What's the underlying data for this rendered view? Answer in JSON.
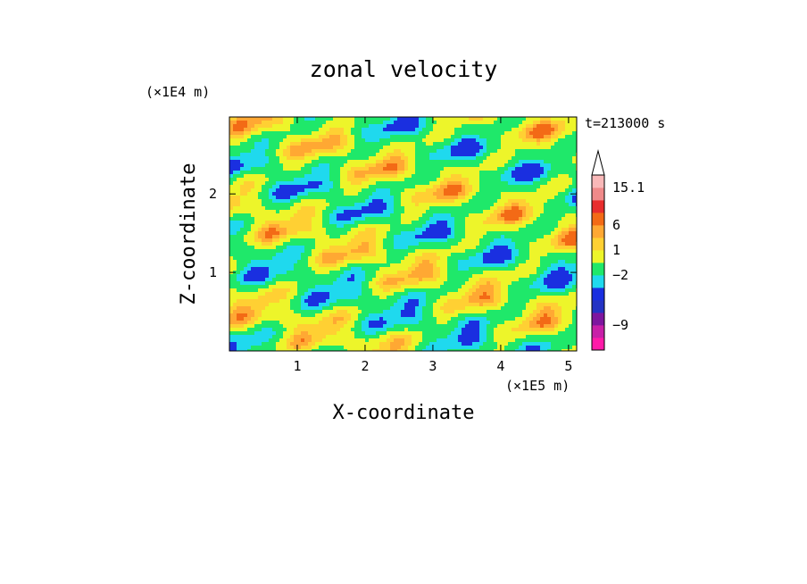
{
  "chart_data": {
    "type": "heatmap",
    "title": "zonal velocity",
    "time_label": "t=213000 s",
    "xlabel": "X-coordinate",
    "ylabel": "Z-coordinate",
    "x_unit": "(×1E5 m)",
    "y_unit": "(×1E4 m)",
    "xlim": [
      0,
      5.12
    ],
    "ylim": [
      0,
      2.98
    ],
    "x_ticks": [
      1,
      2,
      3,
      4,
      5
    ],
    "y_ticks": [
      1,
      2
    ],
    "colorbar": {
      "colors": [
        "#ff1aa8",
        "#c81fa8",
        "#7d169f",
        "#2433c4",
        "#1a2fe0",
        "#1fd9ee",
        "#1fe86a",
        "#edf52a",
        "#ffd033",
        "#ffa833",
        "#f36a16",
        "#e82d2d",
        "#f08a8a",
        "#f9b8b8"
      ],
      "extend_max": true,
      "labels": [
        "15.1",
        "6",
        "1",
        "−2",
        "−9"
      ],
      "label_bands": [
        13,
        10,
        8,
        6,
        2
      ]
    },
    "field_description_levels": {
      "min_level": -13,
      "max_level": 15.1
    }
  }
}
